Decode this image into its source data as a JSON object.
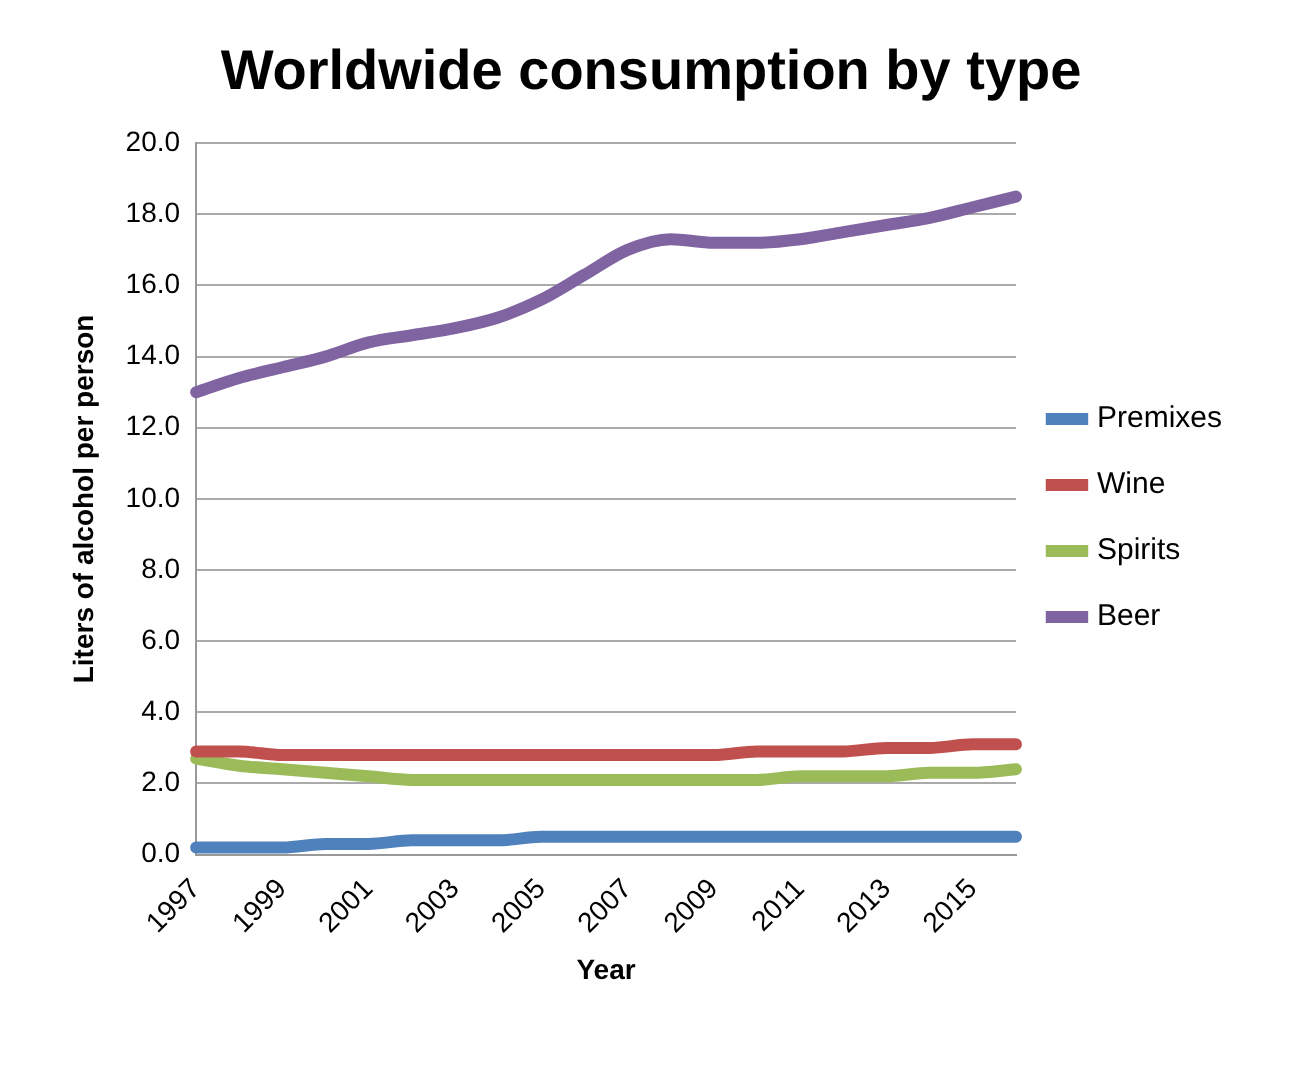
{
  "chart_data": {
    "type": "line",
    "title": "Worldwide consumption by type",
    "xlabel": "Year",
    "ylabel": "Liters of alcohol per person",
    "categories": [
      "1997",
      null,
      "1999",
      null,
      "2001",
      null,
      "2003",
      null,
      "2005",
      null,
      "2007",
      null,
      "2009",
      null,
      "2011",
      null,
      "2013",
      null,
      "2015",
      null
    ],
    "series": [
      {
        "name": "Premixes",
        "color": "#4f81bd",
        "values": [
          0.2,
          0.2,
          0.2,
          0.3,
          0.3,
          0.4,
          0.4,
          0.4,
          0.5,
          0.5,
          0.5,
          0.5,
          0.5,
          0.5,
          0.5,
          0.5,
          0.5,
          0.5,
          0.5,
          0.5
        ]
      },
      {
        "name": "Wine",
        "color": "#c0504d",
        "values": [
          2.9,
          2.9,
          2.8,
          2.8,
          2.8,
          2.8,
          2.8,
          2.8,
          2.8,
          2.8,
          2.8,
          2.8,
          2.8,
          2.9,
          2.9,
          2.9,
          3.0,
          3.0,
          3.1,
          3.1
        ]
      },
      {
        "name": "Spirits",
        "color": "#9bbb59",
        "values": [
          2.7,
          2.5,
          2.4,
          2.3,
          2.2,
          2.1,
          2.1,
          2.1,
          2.1,
          2.1,
          2.1,
          2.1,
          2.1,
          2.1,
          2.2,
          2.2,
          2.2,
          2.3,
          2.3,
          2.4
        ]
      },
      {
        "name": "Beer",
        "color": "#8064a2",
        "values": [
          13.0,
          13.4,
          13.7,
          14.0,
          14.4,
          14.6,
          14.8,
          15.1,
          15.6,
          16.3,
          17.0,
          17.3,
          17.2,
          17.2,
          17.3,
          17.5,
          17.7,
          17.9,
          18.2,
          18.5
        ]
      }
    ],
    "ylim": [
      0,
      20
    ],
    "yticks": [
      {
        "value": 0,
        "label": "0.0"
      },
      {
        "value": 2,
        "label": "2.0"
      },
      {
        "value": 4,
        "label": "4.0"
      },
      {
        "value": 6,
        "label": "6.0"
      },
      {
        "value": 8,
        "label": "8.0"
      },
      {
        "value": 10,
        "label": "10.0"
      },
      {
        "value": 12,
        "label": "12.0"
      },
      {
        "value": 14,
        "label": "14.0"
      },
      {
        "value": 16,
        "label": "16.0"
      },
      {
        "value": 18,
        "label": "18.0"
      },
      {
        "value": 20,
        "label": "20.0"
      }
    ],
    "grid": "y",
    "legend": "right",
    "marker": "none",
    "line_style": "solid"
  }
}
